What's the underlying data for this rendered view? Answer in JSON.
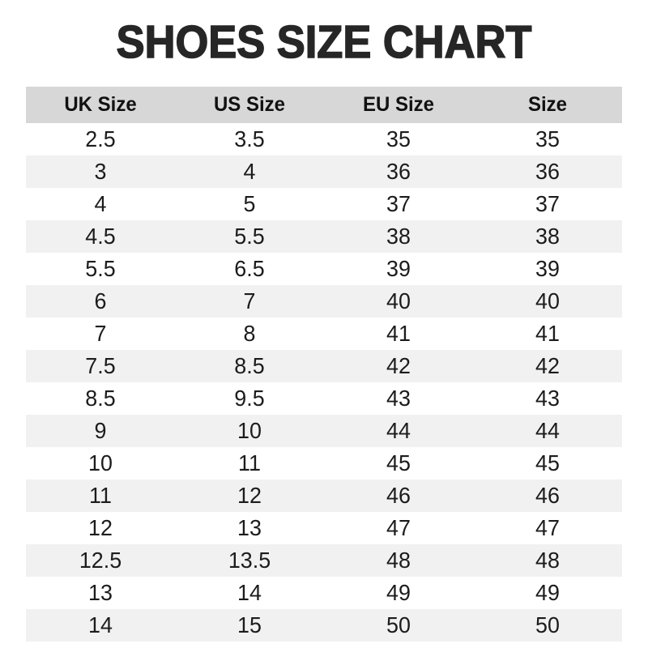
{
  "page": {
    "title": "SHOES SIZE CHART"
  },
  "colors": {
    "title_text": "#262626",
    "header_bg": "#d7d7d7",
    "header_text": "#111111",
    "stripe_bg": "#f1f1f1",
    "cell_text": "#1c1c1c"
  },
  "chart_data": {
    "type": "table",
    "title": "SHOES SIZE CHART",
    "columns": [
      "UK Size",
      "US Size",
      "EU Size",
      "Size"
    ],
    "rows": [
      [
        "2.5",
        "3.5",
        "35",
        "35"
      ],
      [
        "3",
        "4",
        "36",
        "36"
      ],
      [
        "4",
        "5",
        "37",
        "37"
      ],
      [
        "4.5",
        "5.5",
        "38",
        "38"
      ],
      [
        "5.5",
        "6.5",
        "39",
        "39"
      ],
      [
        "6",
        "7",
        "40",
        "40"
      ],
      [
        "7",
        "8",
        "41",
        "41"
      ],
      [
        "7.5",
        "8.5",
        "42",
        "42"
      ],
      [
        "8.5",
        "9.5",
        "43",
        "43"
      ],
      [
        "9",
        "10",
        "44",
        "44"
      ],
      [
        "10",
        "11",
        "45",
        "45"
      ],
      [
        "11",
        "12",
        "46",
        "46"
      ],
      [
        "12",
        "13",
        "47",
        "47"
      ],
      [
        "12.5",
        "13.5",
        "48",
        "48"
      ],
      [
        "13",
        "14",
        "49",
        "49"
      ],
      [
        "14",
        "15",
        "50",
        "50"
      ]
    ],
    "layout": {
      "striped": true,
      "stripe_on": "even-rows",
      "header_background": "#d7d7d7",
      "grid": false,
      "column_alignment": "center"
    }
  }
}
